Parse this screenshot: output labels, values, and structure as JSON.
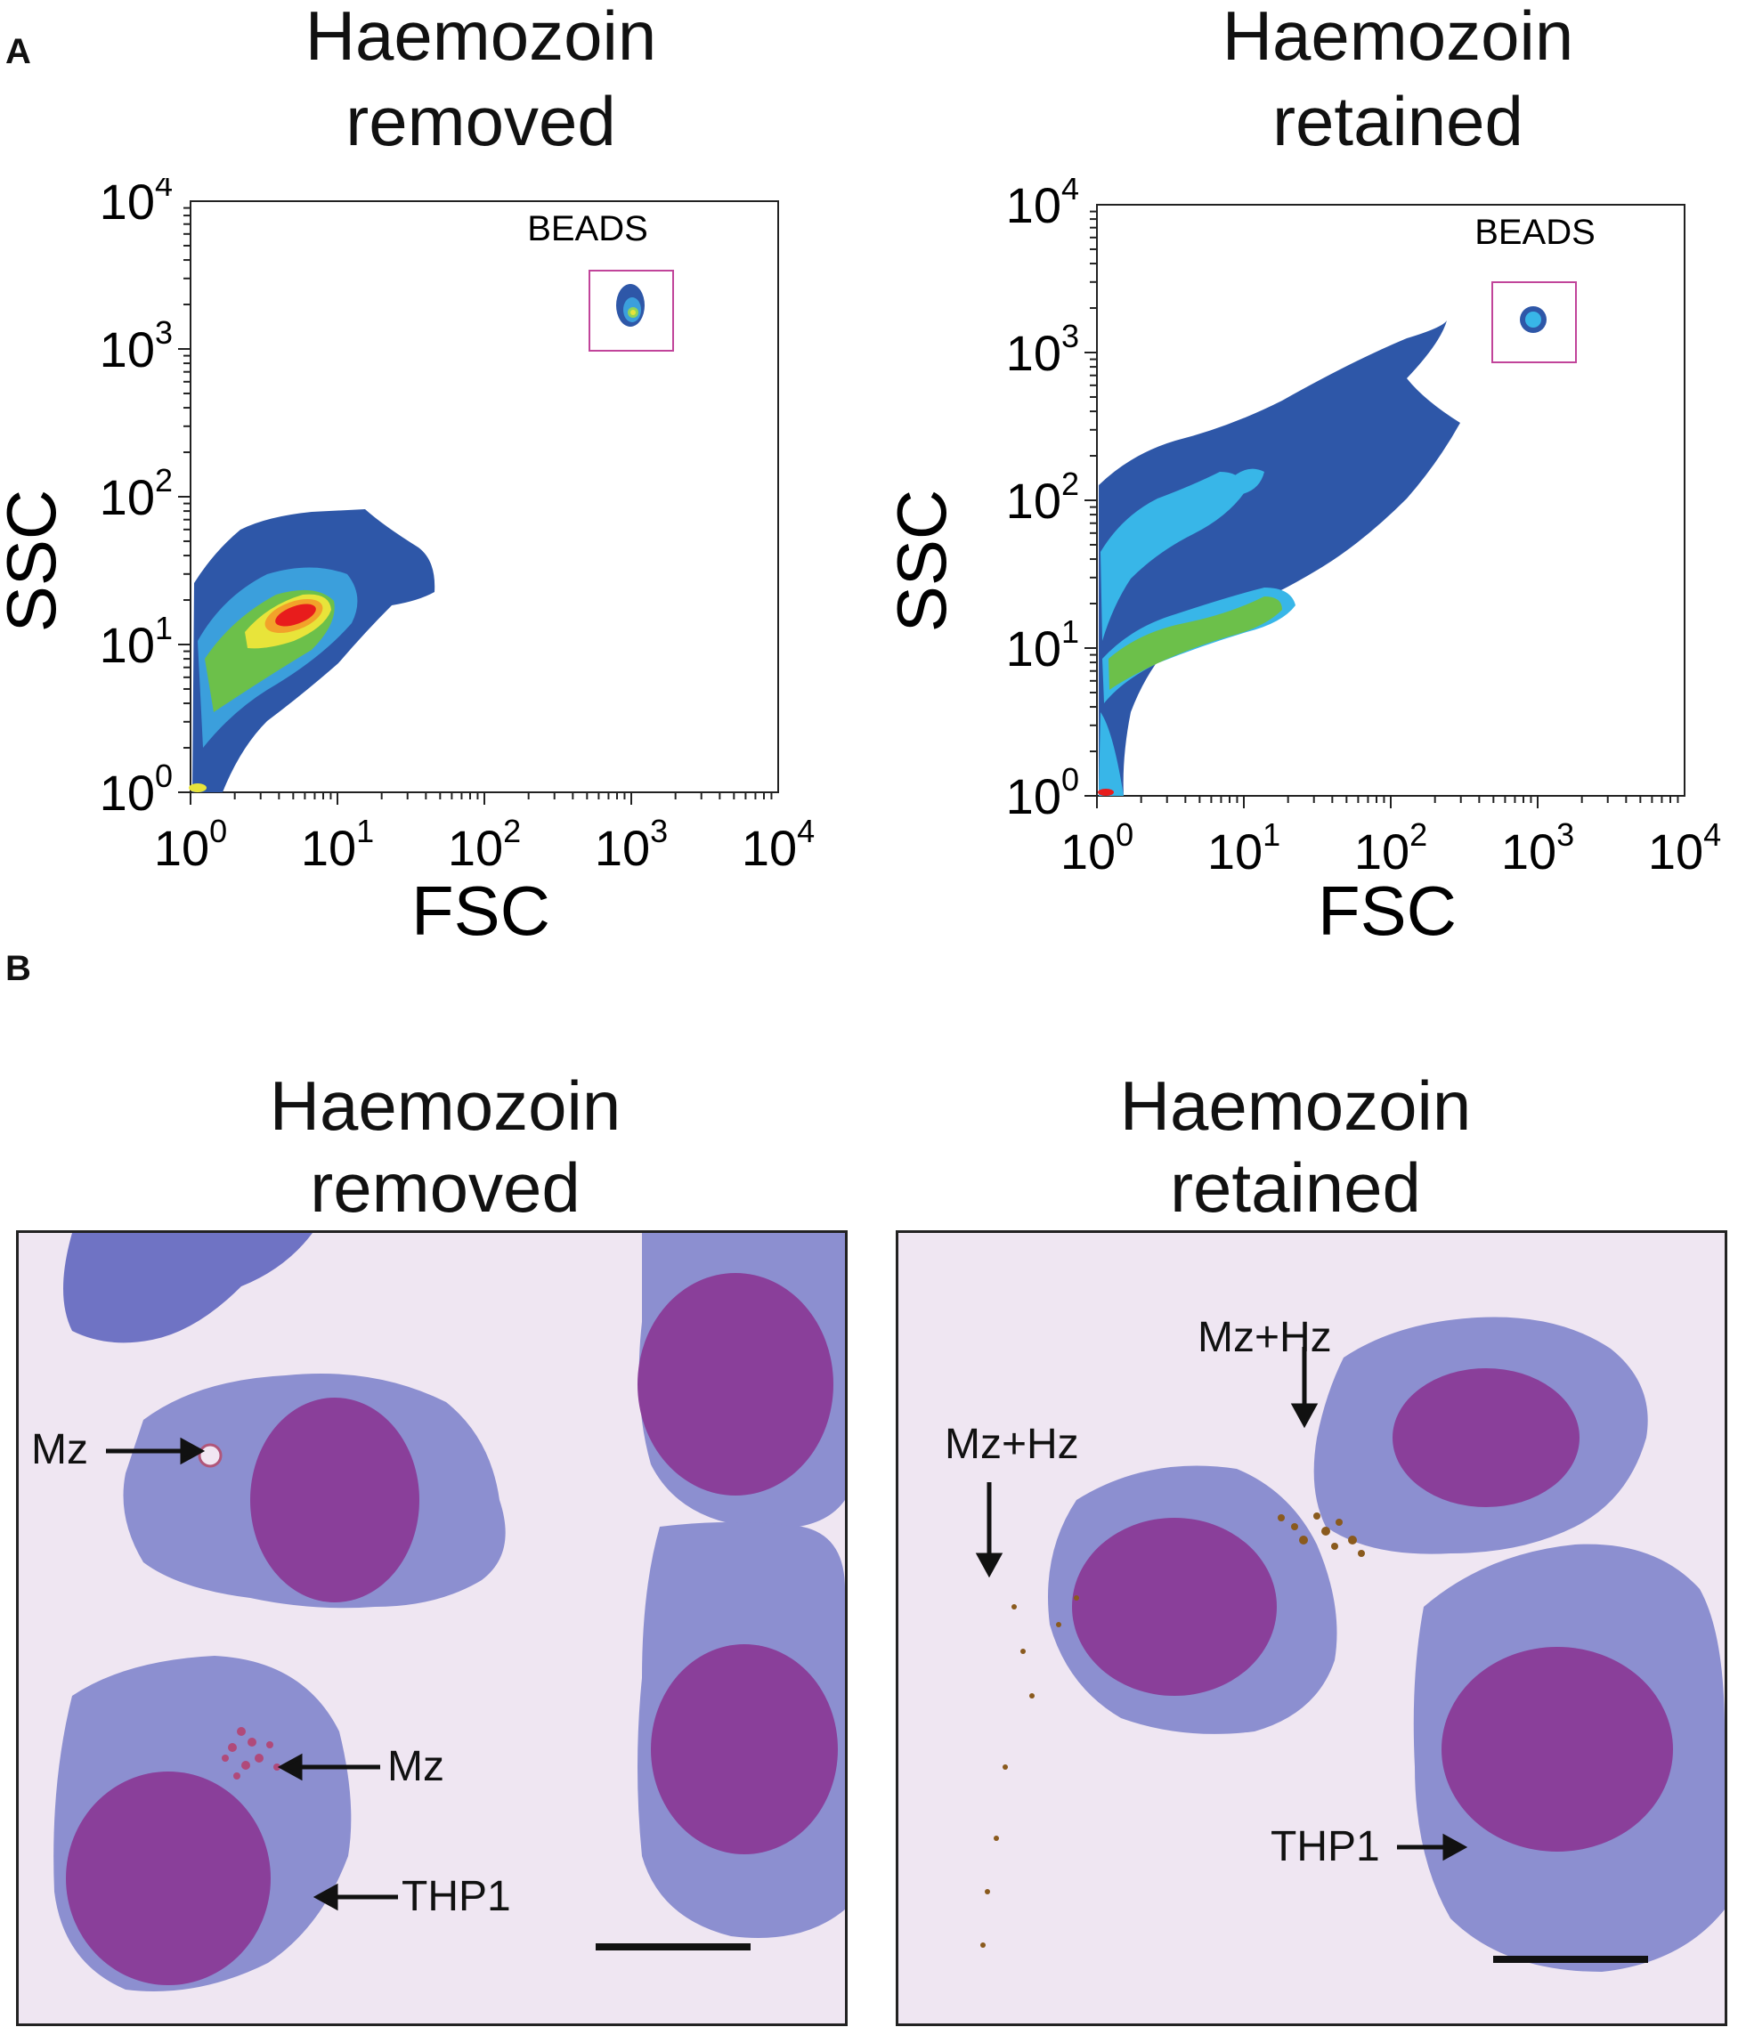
{
  "panels": {
    "a_label": "A",
    "b_label": "B"
  },
  "flow": [
    {
      "title_line1": "Haemozoin",
      "title_line2": "removed",
      "gate_label": "BEADS",
      "xlabel": "FSC",
      "ylabel": "SSC",
      "ticks": [
        "0",
        "1",
        "2",
        "3",
        "4"
      ],
      "tick_base": "10"
    },
    {
      "title_line1": "Haemozoin",
      "title_line2": "retained",
      "gate_label": "BEADS",
      "xlabel": "FSC",
      "ylabel": "SSC",
      "ticks": [
        "0",
        "1",
        "2",
        "3",
        "4"
      ],
      "tick_base": "10"
    }
  ],
  "micro": [
    {
      "title_line1": "Haemozoin",
      "title_line2": "removed",
      "labels": [
        "Mz",
        "Mz",
        "THP1"
      ]
    },
    {
      "title_line1": "Haemozoin",
      "title_line2": "retained",
      "labels": [
        "Mz+Hz",
        "Mz+Hz",
        "THP1"
      ]
    }
  ],
  "colors": {
    "density_low": "#2e57a8",
    "density_mid": "#38b6e8",
    "density_green": "#6cc04a",
    "density_high": "#e81c1c",
    "gate": "#c1449a",
    "nucleus": "#8a3f9a",
    "cytoplasm": "#8c8fd0"
  }
}
